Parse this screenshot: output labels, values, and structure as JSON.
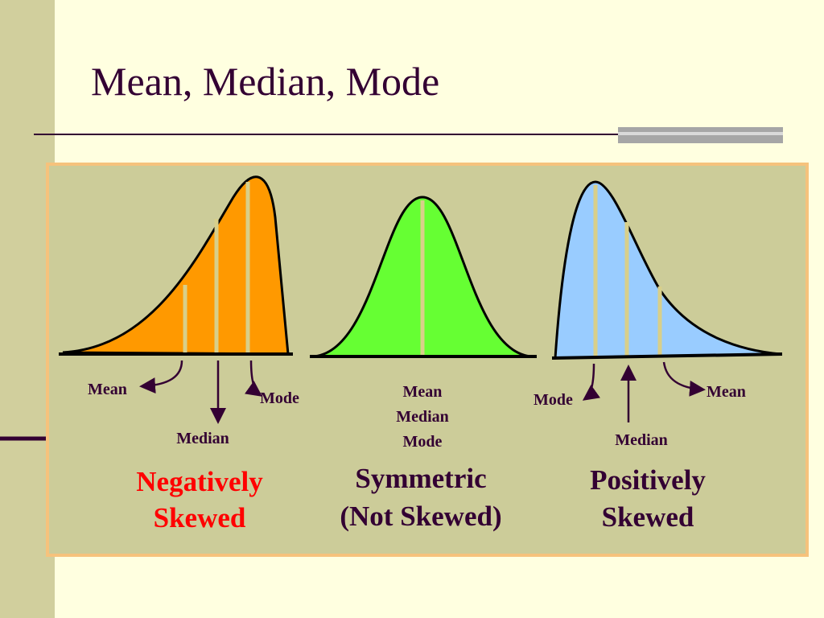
{
  "title": "Mean, Median, Mode",
  "panels": [
    {
      "mean": "Mean",
      "median": "Median",
      "mode": "Mode",
      "caption": [
        "Negatively",
        "Skewed"
      ]
    },
    {
      "mean": "Mean",
      "median": "Median",
      "mode": "Mode",
      "caption": [
        "Symmetric",
        "(Not Skewed)"
      ]
    },
    {
      "mean": "Mean",
      "median": "Median",
      "mode": "Mode",
      "caption": [
        "Positively",
        "Skewed"
      ]
    }
  ]
}
